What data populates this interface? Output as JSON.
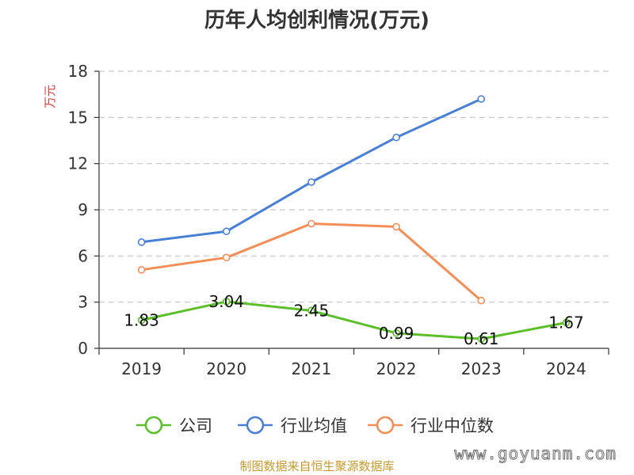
{
  "chart_data": {
    "type": "line",
    "title": "历年人均创利情况(万元)",
    "ylabel": "万元",
    "xlabel": "",
    "ylim": [
      0,
      18
    ],
    "yticks": [
      0,
      3,
      6,
      9,
      12,
      15,
      18
    ],
    "grid": "horizontal dashed",
    "legend_position": "bottom",
    "categories": [
      "2019",
      "2020",
      "2021",
      "2022",
      "2023",
      "2024"
    ],
    "series": [
      {
        "name": "公司",
        "color": "#5bbf2a",
        "values": [
          1.83,
          3.04,
          2.45,
          0.99,
          0.61,
          1.67
        ],
        "labels": [
          "1.83",
          "3.04",
          "2.45",
          "0.99",
          "0.61",
          "1.67"
        ]
      },
      {
        "name": "行业均值",
        "color": "#4a7fd6",
        "values": [
          6.9,
          7.6,
          10.8,
          13.7,
          16.2,
          null
        ]
      },
      {
        "name": "行业中位数",
        "color": "#f28e56",
        "values": [
          5.1,
          5.9,
          8.1,
          7.9,
          3.1,
          null
        ]
      }
    ]
  },
  "footer": {
    "source": "制图数据来自恒生聚源数据库",
    "watermark": "www.goyuanm.com"
  }
}
